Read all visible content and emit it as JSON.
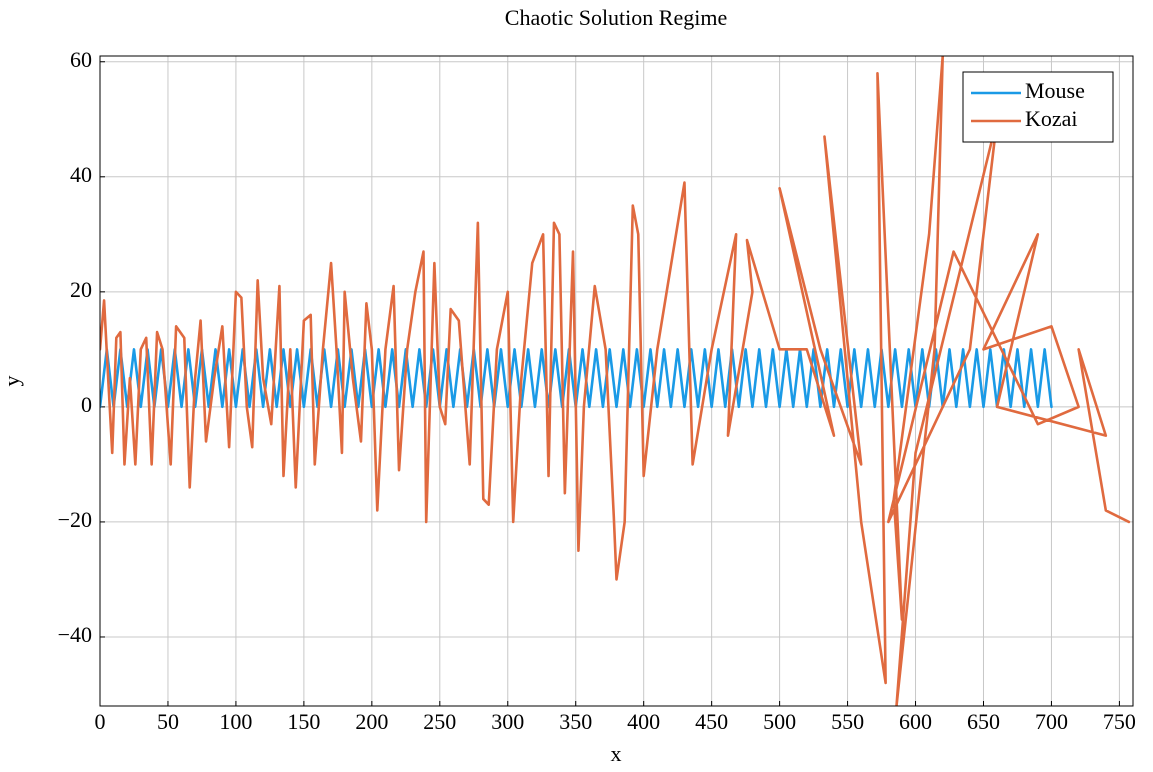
{
  "chart_data": {
    "type": "line",
    "title": "Chaotic Solution Regime",
    "x_label": "x",
    "y_label": "y",
    "xlim": [
      0,
      760
    ],
    "ylim": [
      -52,
      61
    ],
    "xticks": [
      0,
      50,
      100,
      150,
      200,
      250,
      300,
      350,
      400,
      450,
      500,
      550,
      600,
      650,
      700,
      750
    ],
    "yticks": [
      {
        "value": -40,
        "label": "−40"
      },
      {
        "value": -20,
        "label": "−20"
      },
      0,
      20,
      40,
      60
    ],
    "grid": true,
    "legend": "upper right",
    "series": [
      {
        "name": "Mouse",
        "color": "#1a9ae6",
        "x": [
          0,
          5,
          10,
          15,
          20,
          25,
          30,
          35,
          40,
          45,
          50,
          55,
          60,
          65,
          70,
          75,
          80,
          85,
          90,
          95,
          100,
          105,
          110,
          115,
          120,
          125,
          130,
          135,
          140,
          145,
          150,
          155,
          160,
          165,
          170,
          175,
          180,
          185,
          190,
          195,
          200,
          205,
          210,
          215,
          220,
          225,
          230,
          235,
          240,
          245,
          250,
          255,
          260,
          265,
          270,
          275,
          280,
          285,
          290,
          295,
          300,
          305,
          310,
          315,
          320,
          325,
          330,
          335,
          340,
          345,
          350,
          355,
          360,
          365,
          370,
          375,
          380,
          385,
          390,
          395,
          400,
          405,
          410,
          415,
          420,
          425,
          430,
          435,
          440,
          445,
          450,
          455,
          460,
          465,
          470,
          475,
          480,
          485,
          490,
          495,
          500,
          505,
          510,
          515,
          520,
          525,
          530,
          535,
          540,
          545,
          550,
          555,
          560,
          565,
          570,
          575,
          580,
          585,
          590,
          595,
          600,
          605,
          610,
          615,
          620,
          625,
          630,
          635,
          640,
          645,
          650,
          655,
          660,
          665,
          670,
          675,
          680,
          685,
          690,
          695,
          700
        ],
        "values": [
          0,
          10,
          0,
          10,
          0,
          10,
          0,
          10,
          0,
          10,
          0,
          10,
          0,
          10,
          0,
          10,
          0,
          10,
          0,
          10,
          0,
          10,
          0,
          10,
          0,
          10,
          0,
          10,
          0,
          10,
          0,
          10,
          0,
          10,
          0,
          10,
          0,
          10,
          0,
          10,
          0,
          10,
          0,
          10,
          0,
          10,
          0,
          10,
          0,
          10,
          0,
          10,
          0,
          10,
          0,
          10,
          0,
          10,
          0,
          10,
          0,
          10,
          0,
          10,
          0,
          10,
          0,
          10,
          0,
          10,
          0,
          10,
          0,
          10,
          0,
          10,
          0,
          10,
          0,
          10,
          0,
          10,
          0,
          10,
          0,
          10,
          0,
          10,
          0,
          10,
          0,
          10,
          0,
          10,
          0,
          10,
          0,
          10,
          0,
          10,
          0,
          10,
          0,
          10,
          0,
          10,
          0,
          10,
          0,
          10,
          0,
          10,
          0,
          10,
          0,
          10,
          0,
          10,
          0,
          10,
          0,
          10,
          0,
          10,
          0,
          10,
          0,
          10,
          0,
          10,
          0,
          10,
          0,
          10,
          0,
          10,
          0,
          10,
          0,
          10,
          0
        ]
      },
      {
        "name": "Kozai",
        "color": "#e06a3f",
        "x": [
          0,
          3,
          6,
          9,
          12,
          15,
          18,
          22,
          26,
          30,
          34,
          38,
          42,
          46,
          52,
          56,
          62,
          66,
          70,
          74,
          78,
          84,
          90,
          95,
          100,
          104,
          108,
          112,
          116,
          120,
          126,
          132,
          135,
          140,
          144,
          150,
          155,
          158,
          164,
          170,
          174,
          178,
          180,
          186,
          192,
          196,
          200,
          204,
          210,
          216,
          220,
          226,
          232,
          238,
          240,
          246,
          250,
          254,
          258,
          264,
          272,
          278,
          282,
          286,
          292,
          300,
          304,
          310,
          318,
          326,
          330,
          334,
          338,
          342,
          348,
          352,
          356,
          364,
          372,
          378,
          380,
          386,
          392,
          396,
          400,
          410,
          430,
          436,
          450,
          468,
          462,
          480,
          476,
          500,
          520,
          540,
          500,
          530,
          560,
          533,
          560,
          578,
          572,
          590,
          584,
          610,
          620,
          614,
          586,
          600,
          660,
          640,
          580,
          628,
          690,
          720,
          700,
          650,
          690,
          660,
          740,
          720,
          740,
          757
        ],
        "values": [
          10,
          18.5,
          5,
          -8,
          12,
          13,
          -10,
          5,
          -10,
          10,
          12,
          -10,
          13,
          10,
          -10,
          14,
          12,
          -14,
          5,
          15,
          -6,
          5,
          14,
          -7,
          20,
          19,
          0,
          -7,
          22,
          5,
          -3,
          21,
          -12,
          10,
          -14,
          15,
          16,
          -10,
          10,
          25,
          10,
          -8,
          20,
          5,
          -6,
          18,
          10,
          -18,
          10,
          21,
          -11,
          10,
          20,
          27,
          -20,
          25,
          0,
          -3,
          17,
          15,
          -10,
          32,
          -16,
          -17,
          10,
          20,
          -20,
          5,
          25,
          30,
          -12,
          32,
          30,
          -15,
          27,
          -25,
          0,
          21,
          10,
          -19,
          -30,
          -20,
          35,
          30,
          -12,
          10,
          39,
          -10,
          10,
          30,
          -5,
          20,
          29,
          10,
          10,
          -5,
          38,
          10,
          -10,
          47,
          -20,
          -48,
          58,
          -37,
          -16,
          30,
          61,
          10,
          -52,
          -8,
          50,
          10,
          -20,
          27,
          -3,
          0,
          14,
          10,
          30,
          0,
          -5,
          10,
          -18,
          -20
        ]
      }
    ]
  }
}
